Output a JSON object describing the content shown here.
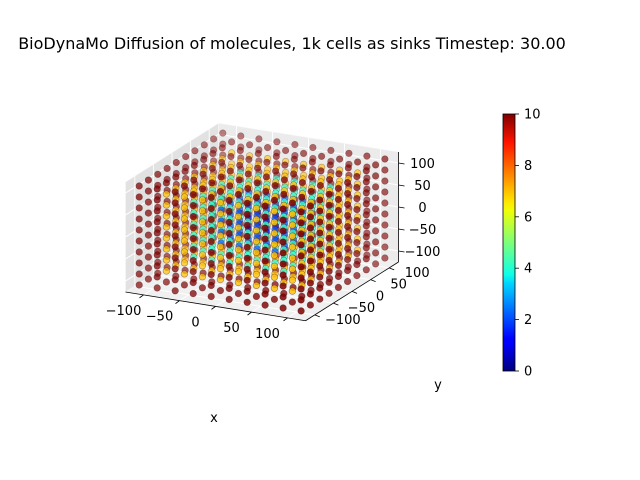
{
  "chart_data": {
    "type": "scatter3d",
    "title": "BioDynaMo Diffusion of molecules, 1k cells as sinks Timestep: 30.00",
    "xlabel": "x",
    "ylabel": "y",
    "zlabel": "",
    "xlim": [
      -125,
      125
    ],
    "ylim": [
      -125,
      125
    ],
    "zlim": [
      -125,
      125
    ],
    "x_ticks": [
      -100,
      -50,
      0,
      50,
      100
    ],
    "y_ticks": [
      -100,
      -50,
      0,
      50,
      100
    ],
    "z_ticks": [
      -100,
      -50,
      0,
      50,
      100
    ],
    "x_tick_labels": [
      "−100",
      "−50",
      "0",
      "50",
      "100"
    ],
    "y_tick_labels": [
      "−100",
      "−50",
      "0",
      "50",
      "100"
    ],
    "z_tick_labels": [
      "−100",
      "−50",
      "0",
      "50",
      "100"
    ],
    "grid": true,
    "grid_points_per_axis": 10,
    "grid_min": -112.5,
    "grid_max": 112.5,
    "color_variable": "concentration",
    "colormap": "jet",
    "colorbar": {
      "min": 0,
      "max": 10,
      "ticks": [
        0,
        2,
        4,
        6,
        8,
        10
      ],
      "tick_labels": [
        "0",
        "2",
        "4",
        "6",
        "8",
        "10"
      ]
    },
    "concentration_model": {
      "center_value": 0.5,
      "edge_value": 10,
      "note": "concentration rises from ~0 at cube center to ~10 at cube faces"
    }
  }
}
